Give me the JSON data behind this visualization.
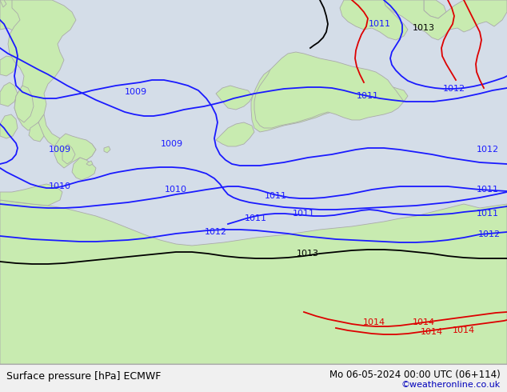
{
  "title_left": "Surface pressure [hPa] ECMWF",
  "title_right": "Mo 06-05-2024 00:00 UTC (06+114)",
  "credit": "©weatheronline.co.uk",
  "bg_color": "#f0f0f0",
  "land_color": "#c8ebb0",
  "sea_color": "#dce8f0",
  "border_color": "#aaaaaa",
  "isobar_blue": "#1a1aff",
  "isobar_black": "#000000",
  "isobar_red": "#dd0000",
  "bottom_bar": "#f0f0f0",
  "bottom_text": "#000000",
  "credit_color": "#0000bb",
  "figsize": [
    6.34,
    4.9
  ],
  "dpi": 100
}
